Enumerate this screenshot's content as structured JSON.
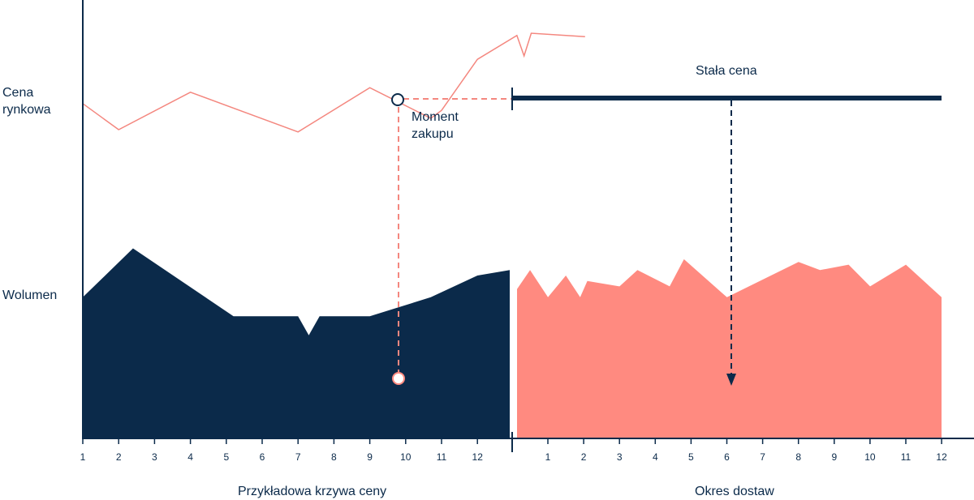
{
  "labels": {
    "y_price": "Cena rynkowa",
    "y_price_line1": "Cena",
    "y_price_line2": "rynkowa",
    "y_volume": "Wolumen",
    "fixed_price": "Stała cena",
    "purchase_line1": "Moment",
    "purchase_line2": "zakupu",
    "x_left": "Przykładowa krzywa ceny",
    "x_right": "Okres dostaw"
  },
  "colors": {
    "navy": "#0b2a4a",
    "coral": "#ff8a80",
    "coral_line": "#f4877f"
  },
  "chart_data": {
    "type": "area",
    "left_panel": {
      "x_ticks": [
        "1",
        "2",
        "3",
        "4",
        "5",
        "6",
        "7",
        "8",
        "9",
        "10",
        "11",
        "12"
      ],
      "price_curve": [
        [
          1,
          0.58
        ],
        [
          2,
          0.35
        ],
        [
          4,
          0.68
        ],
        [
          7,
          0.33
        ],
        [
          9,
          0.72
        ],
        [
          10.7,
          0.45
        ],
        [
          11,
          0.52
        ],
        [
          12,
          0.97
        ],
        [
          13.1,
          1.18
        ],
        [
          13.3,
          1.0
        ],
        [
          13.5,
          1.2
        ],
        [
          15,
          1.17
        ]
      ],
      "volume": [
        [
          1,
          0.52
        ],
        [
          2.4,
          0.7
        ],
        [
          5.2,
          0.45
        ],
        [
          7,
          0.45
        ],
        [
          7.3,
          0.38
        ],
        [
          7.6,
          0.45
        ],
        [
          9,
          0.45
        ],
        [
          10.7,
          0.52
        ],
        [
          12,
          0.6
        ],
        [
          13.2,
          0.62
        ],
        [
          13.5,
          0.56
        ],
        [
          13.8,
          0.67
        ],
        [
          14,
          0.62
        ]
      ],
      "purchase_moment_x": 9.8
    },
    "right_panel": {
      "x_ticks": [
        "1",
        "2",
        "3",
        "4",
        "5",
        "6",
        "7",
        "8",
        "9",
        "10",
        "11",
        "12"
      ],
      "fixed_price_level": 0.55,
      "volume": [
        [
          0.1,
          0.55
        ],
        [
          0.5,
          0.62
        ],
        [
          1.0,
          0.52
        ],
        [
          1.5,
          0.6
        ],
        [
          1.9,
          0.52
        ],
        [
          2.1,
          0.58
        ],
        [
          3.0,
          0.56
        ],
        [
          3.5,
          0.62
        ],
        [
          4.4,
          0.56
        ],
        [
          4.8,
          0.66
        ],
        [
          6.0,
          0.52
        ],
        [
          8.0,
          0.65
        ],
        [
          8.6,
          0.62
        ],
        [
          9.4,
          0.64
        ],
        [
          10.0,
          0.56
        ],
        [
          11.0,
          0.64
        ],
        [
          12.0,
          0.52
        ]
      ],
      "delivery_arrow_x": 6.1
    }
  }
}
